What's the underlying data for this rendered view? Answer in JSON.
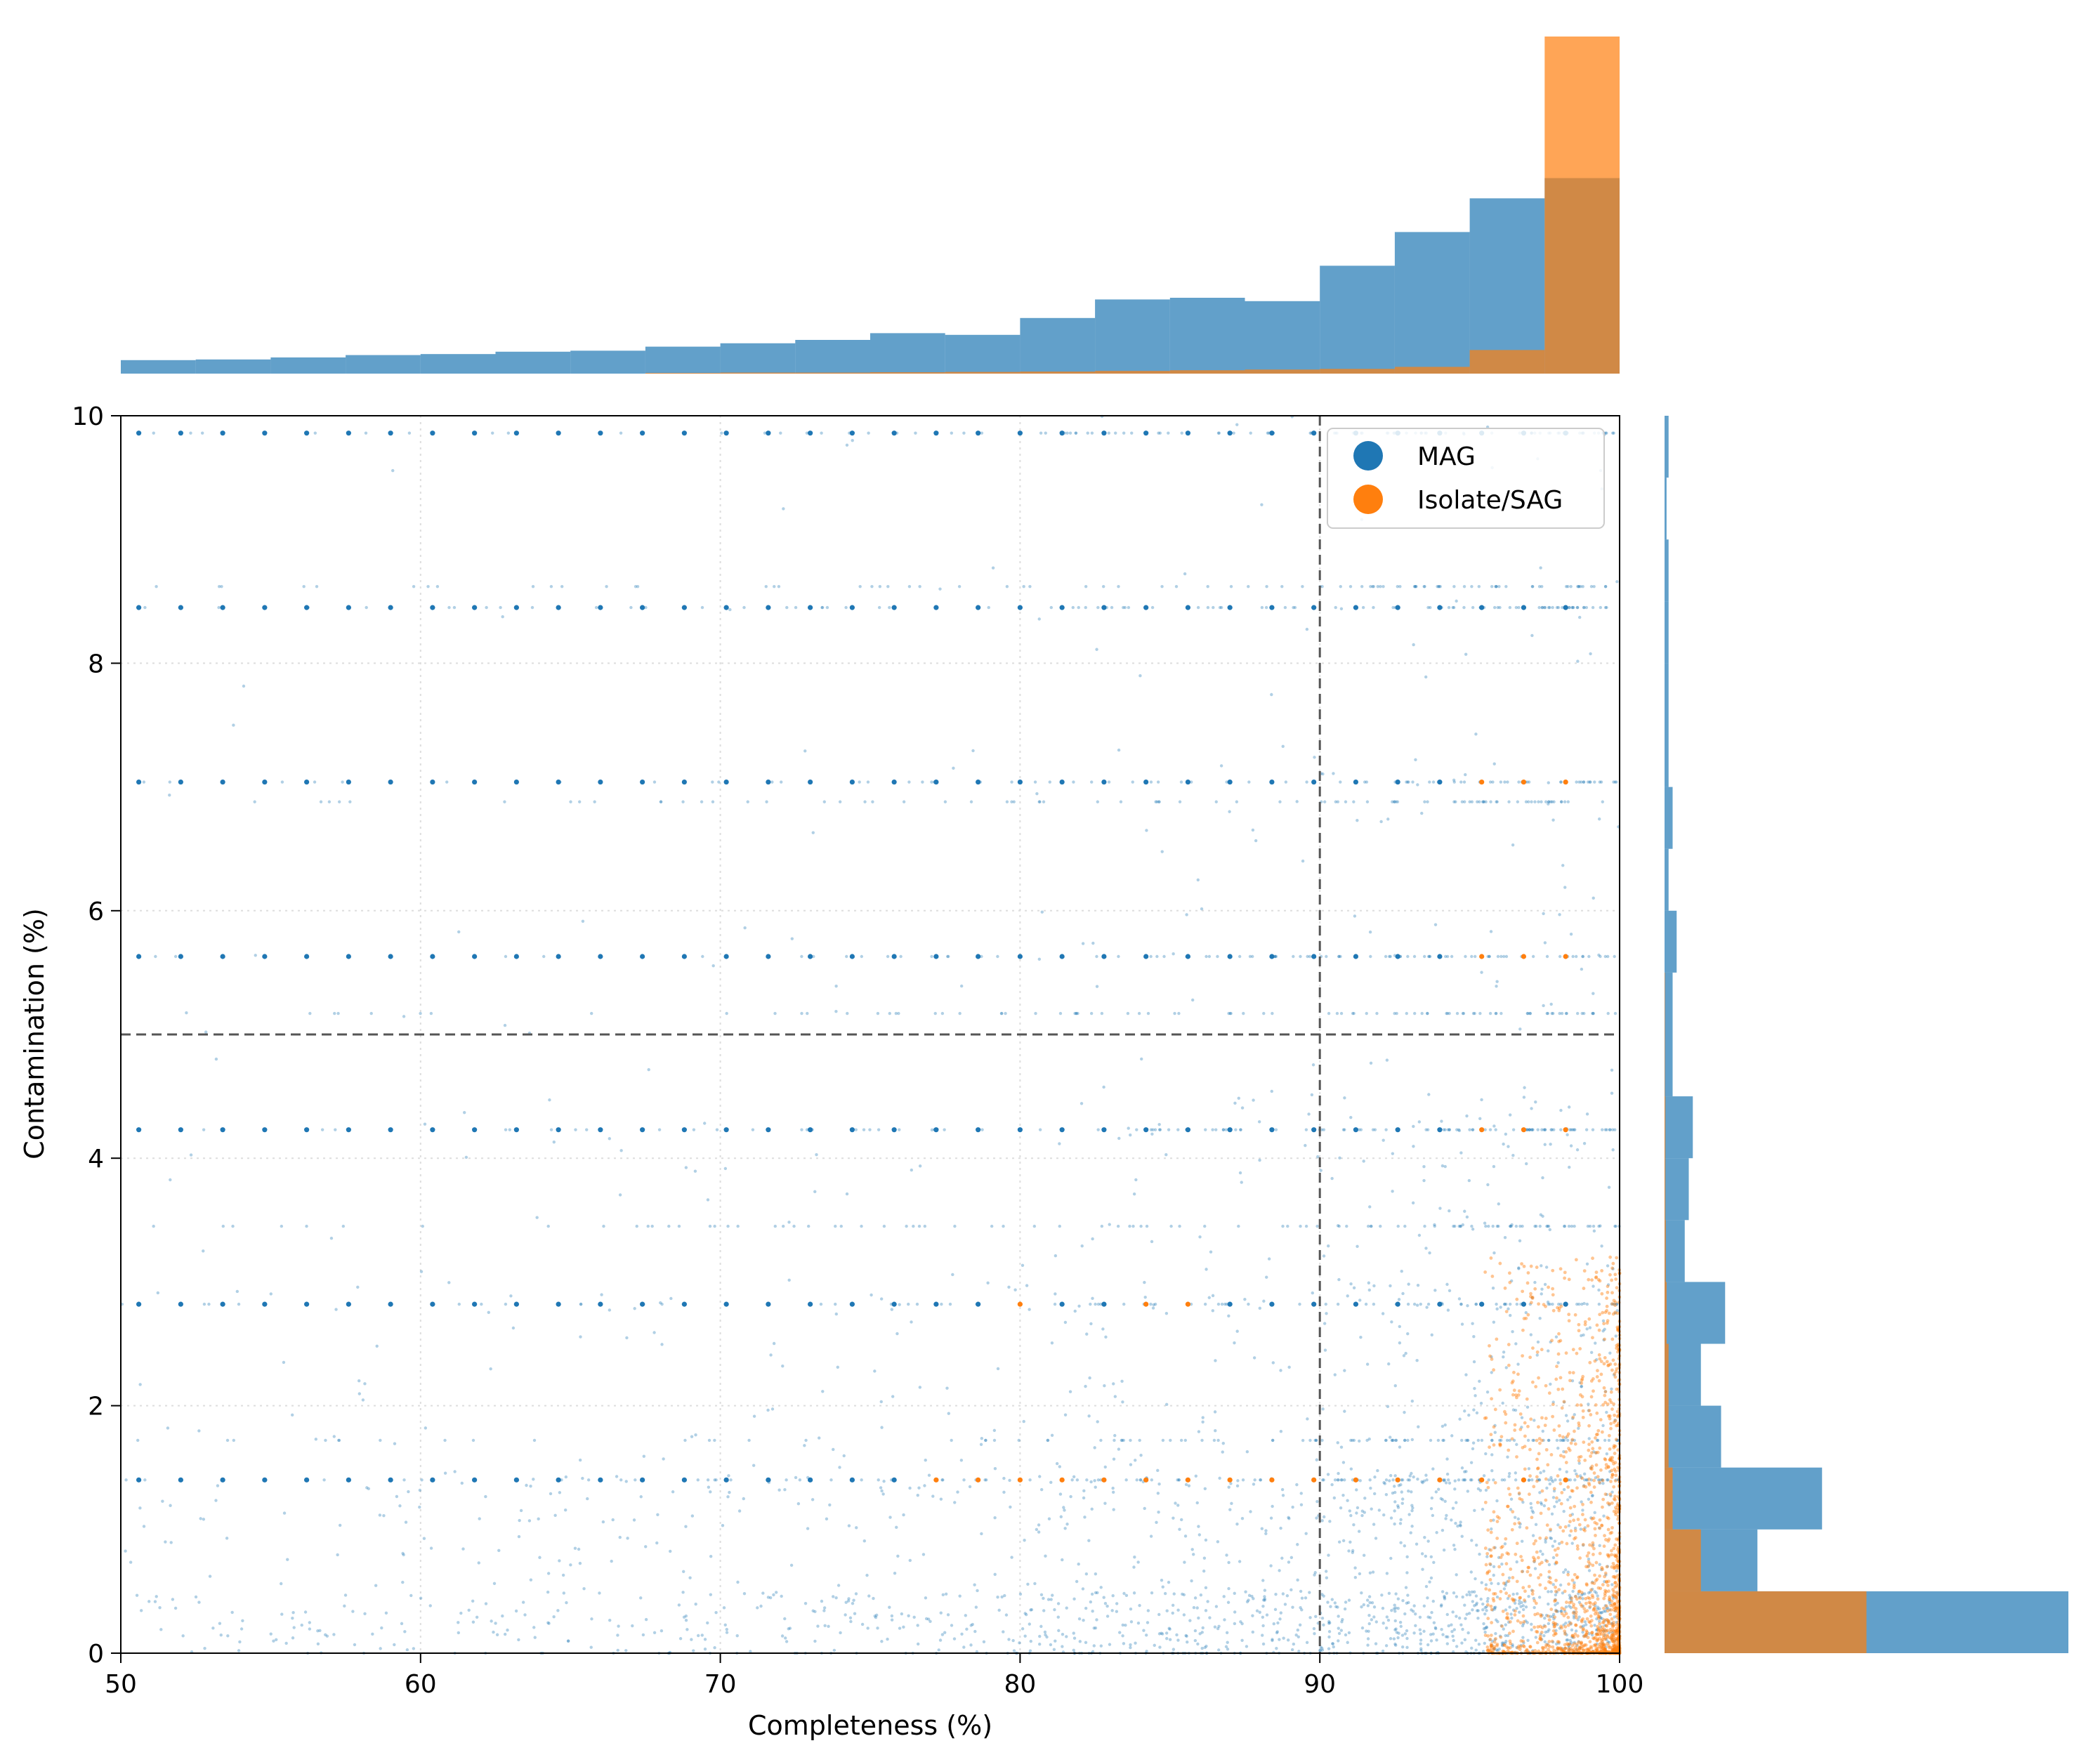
{
  "chart_data": {
    "type": "scatter",
    "title": "",
    "xlabel": "Completeness (%)",
    "ylabel": "Contamination (%)",
    "xlim": [
      50,
      100
    ],
    "ylim": [
      0,
      10
    ],
    "xticks": [
      50,
      60,
      70,
      80,
      90,
      100
    ],
    "yticks": [
      0,
      2,
      4,
      6,
      8,
      10
    ],
    "xtick_labels": [
      "50",
      "60",
      "70",
      "80",
      "90",
      "100"
    ],
    "ytick_labels": [
      "0",
      "2",
      "4",
      "6",
      "8",
      "10"
    ],
    "grid": true,
    "legend": {
      "placement": "top-right",
      "entries": [
        "MAG",
        "Isolate/SAG"
      ]
    },
    "thresholds": {
      "completeness": 90,
      "contamination": 5
    },
    "series": [
      {
        "name": "MAG",
        "color": "#1f77b4"
      },
      {
        "name": "Isolate/SAG",
        "color": "#ff7f0e"
      }
    ],
    "marginal_x_hist": {
      "bin_edges": [
        50,
        52.5,
        55,
        57.5,
        60,
        62.5,
        65,
        67.5,
        70,
        72.5,
        75,
        77.5,
        80,
        82.5,
        85,
        87.5,
        90,
        92.5,
        95,
        97.5,
        100
      ],
      "MAG": [
        0.04,
        0.042,
        0.048,
        0.055,
        0.058,
        0.065,
        0.068,
        0.08,
        0.09,
        0.1,
        0.12,
        0.115,
        0.165,
        0.22,
        0.225,
        0.215,
        0.32,
        0.42,
        0.52,
        0.58
      ],
      "Isolate/SAG": [
        0,
        0,
        0,
        0,
        0,
        0,
        0,
        0.002,
        0.003,
        0.003,
        0.004,
        0.005,
        0.006,
        0.008,
        0.01,
        0.012,
        0.014,
        0.02,
        0.07,
        1.0
      ]
    },
    "marginal_y_hist": {
      "bin_edges": [
        0,
        0.5,
        1,
        1.5,
        2,
        2.5,
        3,
        3.5,
        4,
        4.5,
        5,
        5.5,
        6,
        6.5,
        7,
        7.5,
        8,
        8.5,
        9,
        9.5,
        10
      ],
      "MAG": [
        1.0,
        0.23,
        0.39,
        0.14,
        0.09,
        0.15,
        0.05,
        0.06,
        0.07,
        0.02,
        0.02,
        0.03,
        0.01,
        0.02,
        0.01,
        0.01,
        0.01,
        0.01,
        0.005,
        0.01
      ],
      "Isolate/SAG": [
        0.5,
        0.09,
        0.02,
        0.01,
        0.01,
        0.005,
        0.003,
        0.002,
        0.002,
        0.001,
        0.001,
        0,
        0,
        0,
        0,
        0,
        0,
        0,
        0,
        0
      ]
    },
    "quantized_rows": [
      0.0,
      1.4,
      1.72,
      2.82,
      3.45,
      4.23,
      5.17,
      5.63,
      6.88,
      7.04,
      8.45,
      8.62,
      9.86
    ]
  }
}
